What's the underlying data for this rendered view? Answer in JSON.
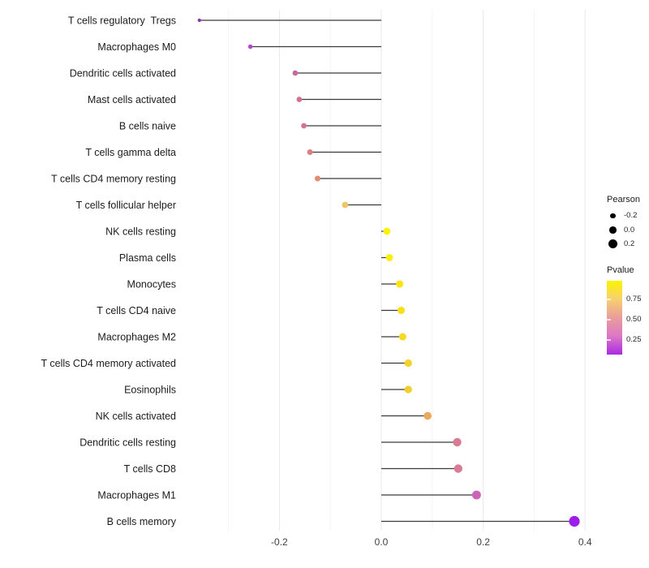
{
  "chart_data": {
    "type": "scatter",
    "subtype": "lollipop",
    "title": "",
    "xlabel": "",
    "ylabel": "",
    "xlim": [
      -0.4,
      0.45
    ],
    "grid": "major and minor vertical gridlines, light gray on white",
    "legend_position": "right",
    "x_ticks": [
      {
        "value": -0.2,
        "label": "-0.2"
      },
      {
        "value": 0.0,
        "label": "0.0"
      },
      {
        "value": 0.2,
        "label": "0.2"
      },
      {
        "value": 0.4,
        "label": "0.4"
      }
    ],
    "x_minor_ticks": [
      -0.3,
      -0.1,
      0.1,
      0.3
    ],
    "stem_color": "#3a3a3a",
    "rows": [
      {
        "label": "T cells regulatory  Tregs",
        "pearson": -0.357,
        "color": "#8a36ad"
      },
      {
        "label": "Macrophages M0",
        "pearson": -0.257,
        "color": "#b347d2"
      },
      {
        "label": "Dendritic cells activated",
        "pearson": -0.169,
        "color": "#c6679e"
      },
      {
        "label": "Mast cells activated",
        "pearson": -0.161,
        "color": "#cf7094"
      },
      {
        "label": "B cells naive",
        "pearson": -0.152,
        "color": "#d47689"
      },
      {
        "label": "T cells gamma delta",
        "pearson": -0.14,
        "color": "#da8180"
      },
      {
        "label": "T cells CD4 memory resting",
        "pearson": -0.125,
        "color": "#e18e6e"
      },
      {
        "label": "T cells follicular helper",
        "pearson": -0.071,
        "color": "#f0c566"
      },
      {
        "label": "NK cells resting",
        "pearson": 0.011,
        "color": "#fbf303"
      },
      {
        "label": "Plasma cells",
        "pearson": 0.016,
        "color": "#fbee08"
      },
      {
        "label": "Monocytes",
        "pearson": 0.036,
        "color": "#f9e414"
      },
      {
        "label": "T cells CD4 naive",
        "pearson": 0.039,
        "color": "#f8e018"
      },
      {
        "label": "Macrophages M2",
        "pearson": 0.042,
        "color": "#f6da22"
      },
      {
        "label": "T cells CD4 memory activated",
        "pearson": 0.053,
        "color": "#f3d229"
      },
      {
        "label": "Eosinophils",
        "pearson": 0.053,
        "color": "#f2cf2d"
      },
      {
        "label": "NK cells activated",
        "pearson": 0.091,
        "color": "#eda95b"
      },
      {
        "label": "Dendritic cells resting",
        "pearson": 0.149,
        "color": "#d87b93"
      },
      {
        "label": "T cells CD8",
        "pearson": 0.151,
        "color": "#d77c96"
      },
      {
        "label": "Macrophages M1",
        "pearson": 0.187,
        "color": "#cb63b6"
      },
      {
        "label": "B cells memory",
        "pearson": 0.379,
        "color": "#9d1ee9"
      }
    ]
  },
  "legend_pearson": {
    "title": "Pearson",
    "entries": [
      {
        "label": "-0.2",
        "value": -0.2
      },
      {
        "label": "0.0",
        "value": 0.0
      },
      {
        "label": "0.2",
        "value": 0.2
      }
    ],
    "dot_color": "#000000"
  },
  "legend_pvalue": {
    "title": "Pvalue",
    "tick_labels": [
      "0.75",
      "0.50",
      "0.25"
    ],
    "gradient_stops": [
      "#fcf400",
      "#f7cf70",
      "#e99e9b",
      "#dc77c6",
      "#ab2ae2"
    ]
  }
}
